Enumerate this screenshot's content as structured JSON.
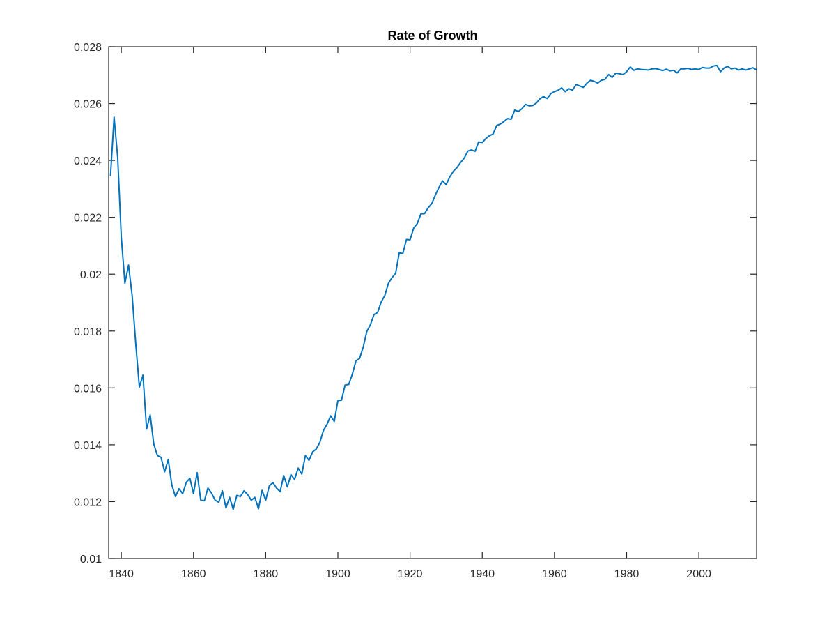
{
  "chart_data": {
    "type": "line",
    "title": "Rate of Growth",
    "xlabel": "",
    "ylabel": "",
    "xlim": [
      1836.5,
      2016
    ],
    "ylim": [
      0.01,
      0.028
    ],
    "x_ticks": [
      1840,
      1860,
      1880,
      1900,
      1920,
      1940,
      1960,
      1980,
      2000
    ],
    "x_tick_labels": [
      "1840",
      "1860",
      "1880",
      "1900",
      "1920",
      "1940",
      "1960",
      "1980",
      "2000"
    ],
    "y_ticks": [
      0.01,
      0.012,
      0.014,
      0.016,
      0.018,
      0.02,
      0.022,
      0.024,
      0.026,
      0.028
    ],
    "y_tick_labels": [
      "0.01",
      "0.012",
      "0.014",
      "0.016",
      "0.018",
      "0.02",
      "0.022",
      "0.024",
      "0.026",
      "0.028"
    ],
    "grid": false,
    "box": true,
    "line_color": "#0072bd",
    "series": [
      {
        "x": [
          1837,
          1838,
          1839,
          1840,
          1841,
          1842,
          1843,
          1844,
          1845,
          1846,
          1847,
          1848,
          1849,
          1850,
          1851,
          1852,
          1853,
          1854,
          1855,
          1856,
          1857,
          1858,
          1859,
          1860,
          1861,
          1862,
          1863,
          1864,
          1865,
          1866,
          1867,
          1868,
          1869,
          1870,
          1871,
          1872,
          1873,
          1874,
          1875,
          1876,
          1877,
          1878,
          1879,
          1880,
          1881,
          1882,
          1883,
          1884,
          1885,
          1886,
          1887,
          1888,
          1889,
          1890,
          1891,
          1892,
          1893,
          1894,
          1895,
          1896,
          1897,
          1898,
          1899,
          1900,
          1901,
          1902,
          1903,
          1904,
          1905,
          1906,
          1907,
          1908,
          1909,
          1910,
          1911,
          1912,
          1913,
          1914,
          1915,
          1916,
          1917,
          1918,
          1919,
          1920,
          1921,
          1922,
          1923,
          1924,
          1925,
          1926,
          1927,
          1928,
          1929,
          1930,
          1931,
          1932,
          1933,
          1934,
          1935,
          1936,
          1937,
          1938,
          1939,
          1940,
          1941,
          1942,
          1943,
          1944,
          1945,
          1946,
          1947,
          1948,
          1949,
          1950,
          1951,
          1952,
          1953,
          1954,
          1955,
          1956,
          1957,
          1958,
          1959,
          1960,
          1961,
          1962,
          1963,
          1964,
          1965,
          1966,
          1967,
          1968,
          1969,
          1970,
          1971,
          1972,
          1973,
          1974,
          1975,
          1976,
          1977,
          1978,
          1979,
          1980,
          1981,
          1982,
          1983,
          1984,
          1985,
          1986,
          1987,
          1988,
          1989,
          1990,
          1991,
          1992,
          1993,
          1994,
          1995,
          1996,
          1997,
          1998,
          1999,
          2000,
          2001,
          2002,
          2003,
          2004,
          2005,
          2006,
          2007,
          2008,
          2009,
          2010,
          2011,
          2012,
          2013,
          2014,
          2015,
          2016
        ],
        "y": [
          0.02345,
          0.02552,
          0.0241,
          0.0213,
          0.01968,
          0.02032,
          0.01925,
          0.01755,
          0.01603,
          0.01645,
          0.01455,
          0.01505,
          0.01402,
          0.01362,
          0.01356,
          0.01305,
          0.01348,
          0.01258,
          0.01218,
          0.01245,
          0.01228,
          0.01268,
          0.01282,
          0.01228,
          0.01302,
          0.01205,
          0.01203,
          0.01248,
          0.0123,
          0.01205,
          0.01198,
          0.01238,
          0.01178,
          0.01215,
          0.01173,
          0.01222,
          0.01218,
          0.01238,
          0.01225,
          0.01205,
          0.01215,
          0.01175,
          0.0124,
          0.01205,
          0.01255,
          0.01267,
          0.01248,
          0.01235,
          0.01292,
          0.01252,
          0.01295,
          0.01278,
          0.01318,
          0.01297,
          0.01362,
          0.01345,
          0.01375,
          0.01385,
          0.01408,
          0.0145,
          0.01472,
          0.01502,
          0.01482,
          0.01555,
          0.01557,
          0.0161,
          0.01612,
          0.01648,
          0.01695,
          0.01703,
          0.01742,
          0.01798,
          0.01822,
          0.01858,
          0.01865,
          0.01902,
          0.01925,
          0.01968,
          0.01988,
          0.02003,
          0.02075,
          0.02073,
          0.02122,
          0.02121,
          0.02162,
          0.02178,
          0.02212,
          0.02213,
          0.02233,
          0.02248,
          0.02278,
          0.02305,
          0.02328,
          0.02315,
          0.02342,
          0.02362,
          0.02375,
          0.02393,
          0.02408,
          0.02433,
          0.02437,
          0.02432,
          0.02465,
          0.02463,
          0.02477,
          0.02487,
          0.02493,
          0.02523,
          0.02528,
          0.02537,
          0.02547,
          0.02545,
          0.02577,
          0.02572,
          0.02582,
          0.02597,
          0.02592,
          0.02593,
          0.02602,
          0.02617,
          0.02625,
          0.02618,
          0.02635,
          0.02642,
          0.02647,
          0.02655,
          0.02642,
          0.02652,
          0.02647,
          0.02667,
          0.02662,
          0.02657,
          0.02672,
          0.02682,
          0.02678,
          0.02672,
          0.02682,
          0.02685,
          0.02702,
          0.02692,
          0.02707,
          0.02705,
          0.02702,
          0.02712,
          0.02729,
          0.02717,
          0.02722,
          0.0272,
          0.02719,
          0.02718,
          0.02722,
          0.02723,
          0.0272,
          0.02716,
          0.02721,
          0.02715,
          0.02717,
          0.02708,
          0.02722,
          0.02722,
          0.02724,
          0.0272,
          0.02722,
          0.0272,
          0.02727,
          0.02725,
          0.02725,
          0.02732,
          0.02734,
          0.02712,
          0.02725,
          0.02731,
          0.02722,
          0.02725,
          0.02718,
          0.02722,
          0.02718,
          0.02722,
          0.02726,
          0.02718
        ]
      }
    ]
  }
}
